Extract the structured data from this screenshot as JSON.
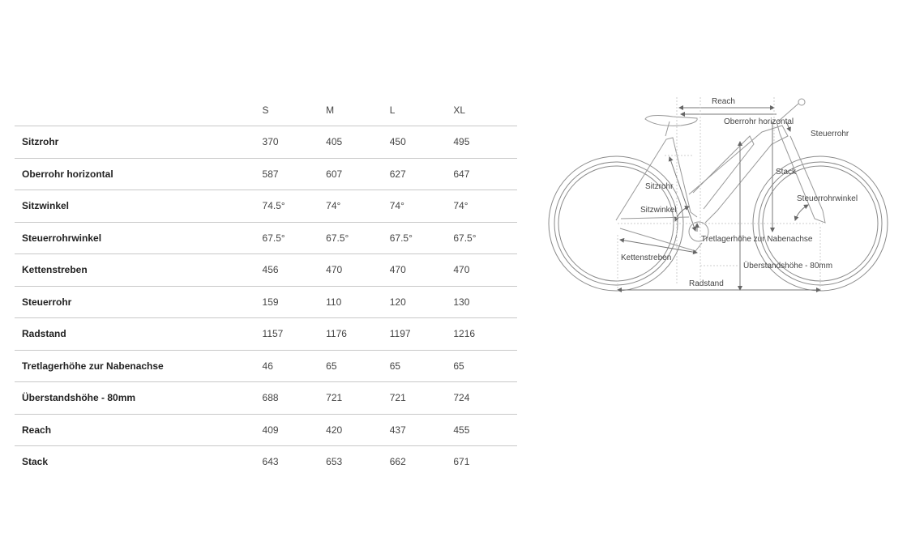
{
  "table": {
    "columns": [
      "S",
      "M",
      "L",
      "XL"
    ],
    "rows": [
      {
        "label": "Sitzrohr",
        "values": [
          "370",
          "405",
          "450",
          "495"
        ]
      },
      {
        "label": "Oberrohr horizontal",
        "values": [
          "587",
          "607",
          "627",
          "647"
        ]
      },
      {
        "label": "Sitzwinkel",
        "values": [
          "74.5°",
          "74°",
          "74°",
          "74°"
        ]
      },
      {
        "label": "Steuerrohrwinkel",
        "values": [
          "67.5°",
          "67.5°",
          "67.5°",
          "67.5°"
        ]
      },
      {
        "label": "Kettenstreben",
        "values": [
          "456",
          "470",
          "470",
          "470"
        ]
      },
      {
        "label": "Steuerrohr",
        "values": [
          "159",
          "110",
          "120",
          "130"
        ]
      },
      {
        "label": "Radstand",
        "values": [
          "1157",
          "1176",
          "1197",
          "1216"
        ]
      },
      {
        "label": "Tretlagerhöhe zur Nabenachse",
        "values": [
          "46",
          "65",
          "65",
          "65"
        ]
      },
      {
        "label": "Überstandshöhe - 80mm",
        "values": [
          "688",
          "721",
          "721",
          "724"
        ]
      },
      {
        "label": "Reach",
        "values": [
          "409",
          "420",
          "437",
          "455"
        ]
      },
      {
        "label": "Stack",
        "values": [
          "643",
          "653",
          "662",
          "671"
        ]
      }
    ]
  },
  "diagram": {
    "labels": {
      "reach": "Reach",
      "oberrohr": "Oberrohr horizontal",
      "steuerrohr": "Steuerrohr",
      "stack": "Stack",
      "sitzrohr": "Sitzrohr",
      "sitzwinkel": "Sitzwinkel",
      "steuerrohrwinkel": "Steuerrohrwinkel",
      "tretlager": "Tretlagerhöhe zur Nabenachse",
      "kettenstreben": "Kettenstreben",
      "ueberstand": "Überstandshöhe - 80mm",
      "radstand": "Radstand"
    },
    "line_color": "#8a8a8a"
  }
}
